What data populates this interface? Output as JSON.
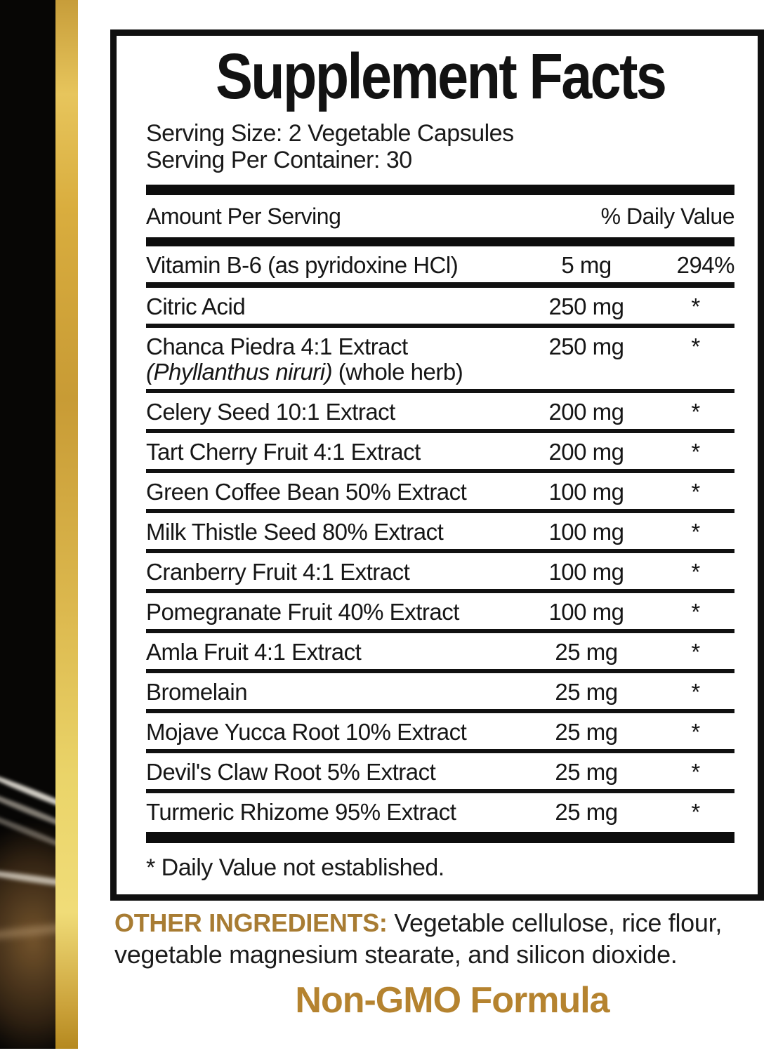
{
  "panel": {
    "title": "Supplement Facts",
    "serving_size": "Serving Size: 2 Vegetable Capsules",
    "serving_per_container": "Serving Per Container: 30",
    "header": {
      "amount": "Amount Per Serving",
      "dv": "% Daily Value"
    },
    "rows": [
      {
        "name": "Vitamin B-6 (as pyridoxine HCl)",
        "amount": "5 mg",
        "dv": "294%"
      },
      {
        "name": "Citric Acid",
        "amount": "250 mg",
        "dv": "*"
      },
      {
        "name": "Chanca Piedra 4:1 Extract",
        "sub_italic": "(Phyllanthus niruri)",
        "sub_regular": " (whole herb)",
        "amount": "250 mg",
        "dv": "*"
      },
      {
        "name": "Celery Seed 10:1 Extract",
        "amount": "200 mg",
        "dv": "*"
      },
      {
        "name": "Tart Cherry Fruit 4:1 Extract",
        "amount": "200 mg",
        "dv": "*"
      },
      {
        "name": "Green Coffee Bean 50% Extract",
        "amount": "100 mg",
        "dv": "*"
      },
      {
        "name": "Milk Thistle Seed 80% Extract",
        "amount": "100 mg",
        "dv": "*"
      },
      {
        "name": "Cranberry Fruit 4:1 Extract",
        "amount": "100 mg",
        "dv": "*"
      },
      {
        "name": "Pomegranate Fruit 40% Extract",
        "amount": "100 mg",
        "dv": "*"
      },
      {
        "name": "Amla Fruit 4:1 Extract",
        "amount": "25 mg",
        "dv": "*"
      },
      {
        "name": "Bromelain",
        "amount": "25 mg",
        "dv": "*"
      },
      {
        "name": "Mojave Yucca Root 10% Extract",
        "amount": "25 mg",
        "dv": "*"
      },
      {
        "name": "Devil's Claw Root 5% Extract",
        "amount": "25 mg",
        "dv": "*"
      },
      {
        "name": "Turmeric Rhizome 95% Extract",
        "amount": "25 mg",
        "dv": "*"
      }
    ],
    "footnote": "* Daily Value not established."
  },
  "other_ingredients": {
    "label": "OTHER INGREDIENTS:",
    "line1": " Vegetable cellulose, rice flour,",
    "line2": "vegetable magnesium stearate, and silicon dioxide."
  },
  "non_gmo": "Non-GMO Formula",
  "colors": {
    "gold_heading": "#a87c33",
    "non_gmo_gold": "#b5832f",
    "gold_stripe": "#dcb84e",
    "panel_border": "#101010",
    "strip_black": "#070605"
  }
}
